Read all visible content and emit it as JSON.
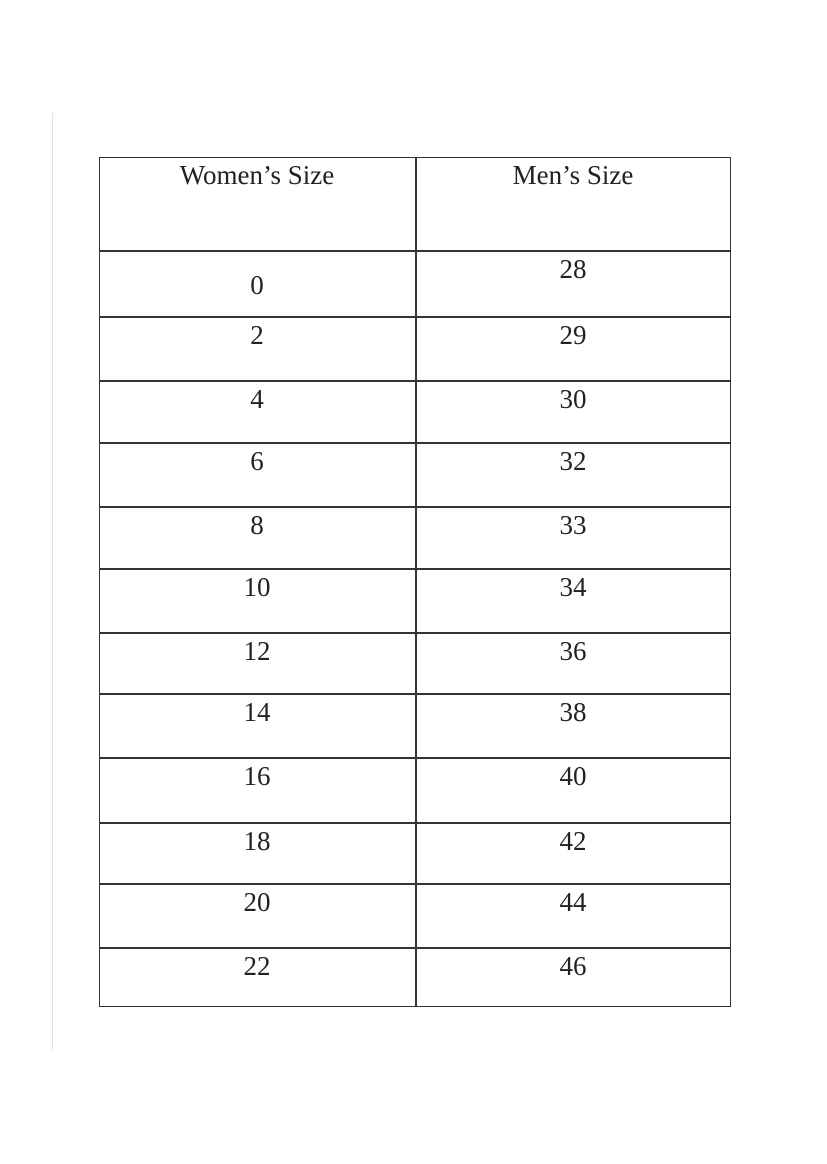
{
  "table": {
    "header": [
      "Women’s Size",
      "Men’s Size"
    ],
    "rows": [
      [
        "0",
        "28"
      ],
      [
        "2",
        "29"
      ],
      [
        "4",
        "30"
      ],
      [
        "6",
        "32"
      ],
      [
        "8",
        "33"
      ],
      [
        "10",
        "34"
      ],
      [
        "12",
        "36"
      ],
      [
        "14",
        "38"
      ],
      [
        "16",
        "40"
      ],
      [
        "18",
        "42"
      ],
      [
        "20",
        "44"
      ],
      [
        "22",
        "46"
      ]
    ]
  }
}
